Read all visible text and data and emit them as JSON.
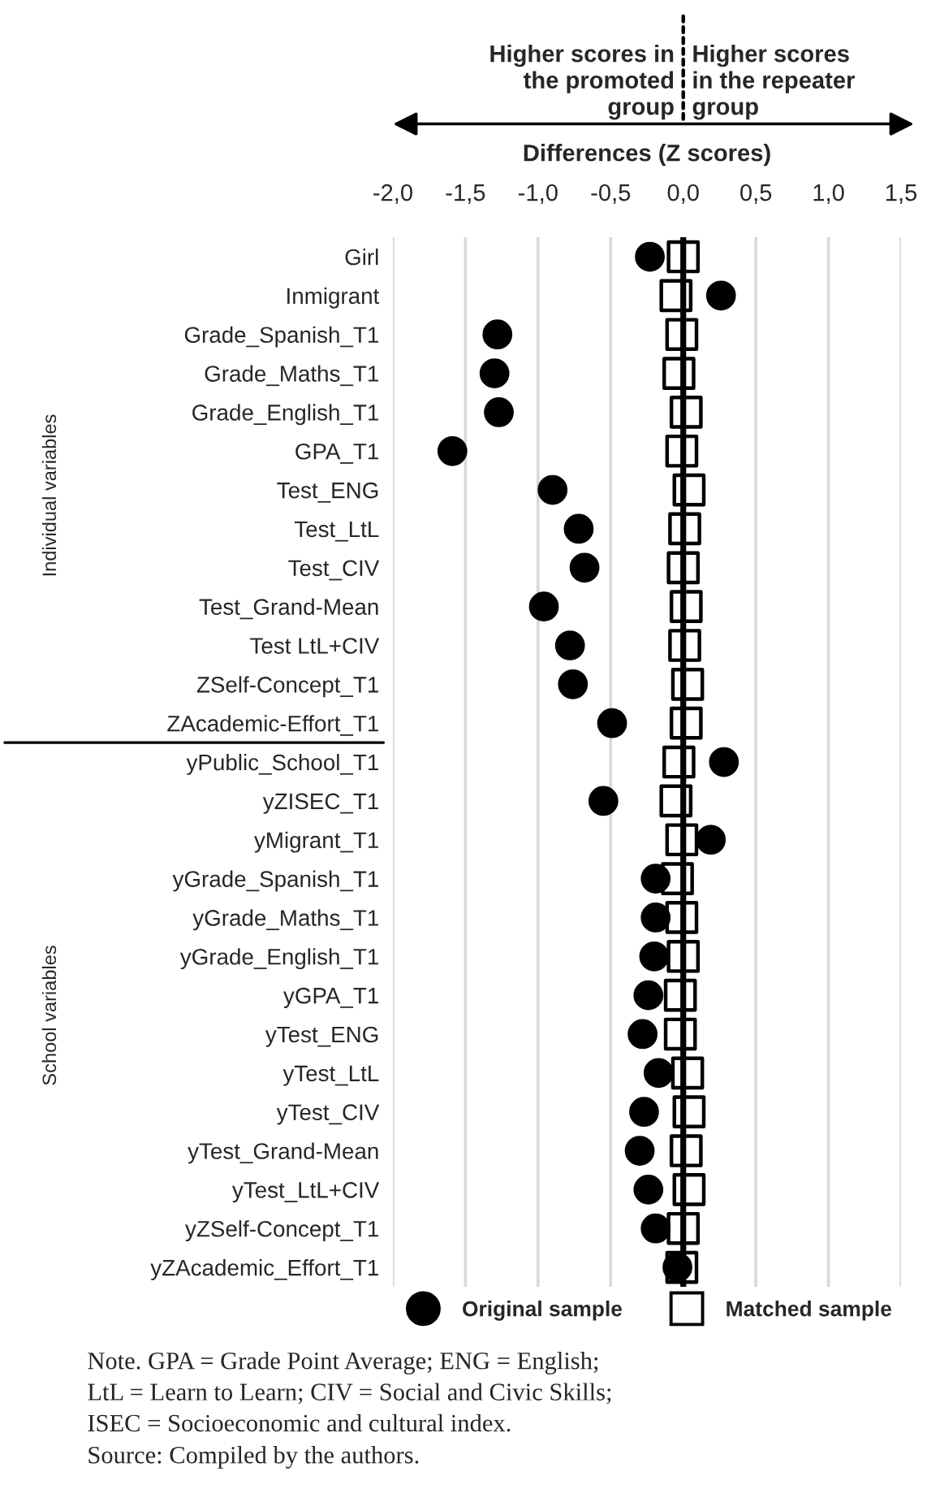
{
  "chart_data": {
    "type": "scatter",
    "xlabel": "Differences (Z scores)",
    "categories": [
      "Girl",
      "Inmigrant",
      "Grade_Spanish_T1",
      "Grade_Maths_T1",
      "Grade_English_T1",
      "GPA_T1",
      "Test_ENG",
      "Test_LtL",
      "Test_CIV",
      "Test_Grand-Mean",
      "Test LtL+CIV",
      "ZSelf-Concept_T1",
      "ZAcademic-Effort_T1",
      "yPublic_School_T1",
      "yZISEC_T1",
      "yMigrant_T1",
      "yGrade_Spanish_T1",
      "yGrade_Maths_T1",
      "yGrade_English_T1",
      "yGPA_T1",
      "yTest_ENG",
      "yTest_LtL",
      "yTest_CIV",
      "yTest_Grand-Mean",
      "yTest_LtL+CIV",
      "yZSelf-Concept_T1",
      "yZAcademic_Effort_T1"
    ],
    "orientation": "horizontal",
    "series": [
      {
        "name": "Original sample",
        "color": "#000000",
        "marker": "circle",
        "values": [
          -0.23,
          0.26,
          -1.28,
          -1.3,
          -1.27,
          -1.59,
          -0.9,
          -0.72,
          -0.68,
          -0.96,
          -0.78,
          -0.76,
          -0.49,
          0.28,
          -0.55,
          0.19,
          -0.19,
          -0.19,
          -0.2,
          -0.24,
          -0.28,
          -0.17,
          -0.27,
          -0.3,
          -0.24,
          -0.19,
          -0.04
        ]
      },
      {
        "name": "Matched sample",
        "color": "#000000",
        "marker": "square",
        "values": [
          0.0,
          -0.05,
          -0.01,
          -0.03,
          0.02,
          -0.01,
          0.04,
          0.01,
          0.0,
          0.02,
          0.01,
          0.03,
          0.02,
          -0.03,
          -0.05,
          -0.01,
          -0.04,
          -0.01,
          0.0,
          -0.02,
          -0.02,
          0.03,
          0.04,
          0.02,
          0.04,
          0.0,
          -0.01
        ]
      }
    ],
    "xlim": [
      -2.0,
      1.5
    ],
    "xticks": [
      {
        "value": -2.0,
        "label": "-2,0"
      },
      {
        "value": -1.5,
        "label": "-1,5"
      },
      {
        "value": -1.0,
        "label": "-1,0"
      },
      {
        "value": -0.5,
        "label": "-0,5"
      },
      {
        "value": 0.0,
        "label": "0,0"
      },
      {
        "value": 0.5,
        "label": "0,5"
      },
      {
        "value": 1.0,
        "label": "1,0"
      },
      {
        "value": 1.5,
        "label": "1,5"
      }
    ],
    "grid": "x",
    "legend": "bottom",
    "ref_lines": [
      {
        "axis": "x",
        "value": 0,
        "color": "#000000"
      }
    ],
    "annotations": [
      "Higher scores in\nthe promoted\ngroup",
      "Higher scores\nin the repeater\ngroup",
      "Individual variables",
      "School variables",
      "Note. GPA = Grade Point Average; ENG = English;\nLtL = Learn to Learn; CIV = Social and Civic Skills;\nISEC = Socioeconomic and cultural index.",
      "Source: Compiled by the authors."
    ]
  }
}
